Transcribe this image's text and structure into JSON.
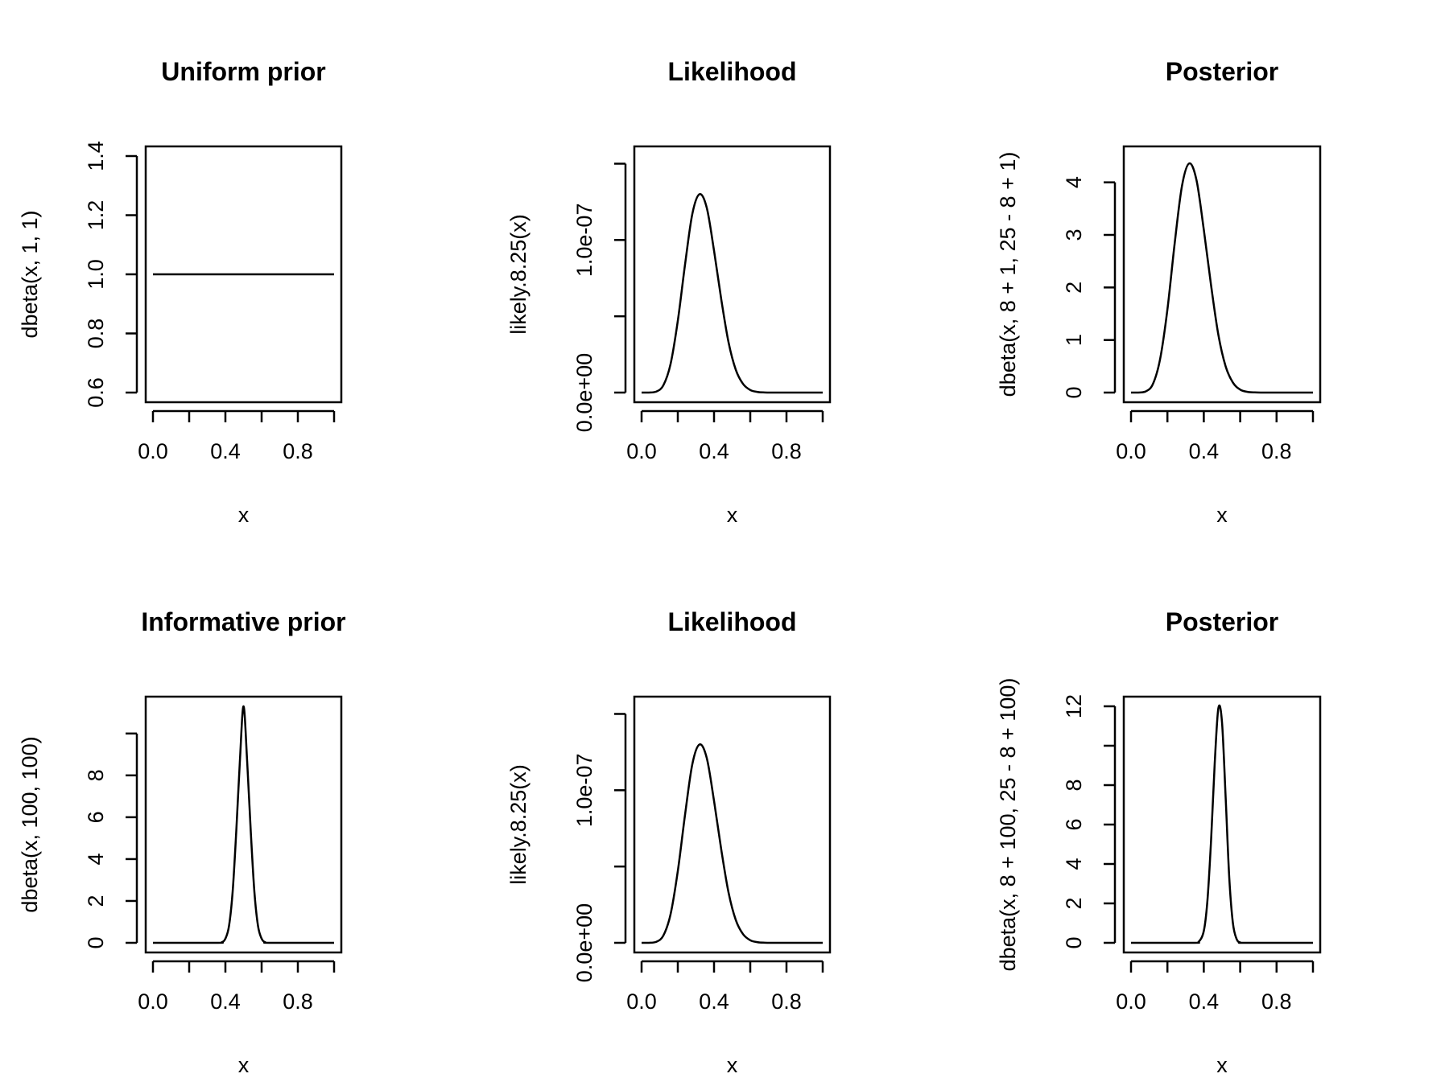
{
  "chart_data": [
    {
      "type": "line",
      "title": "Uniform prior",
      "xlabel": "x",
      "ylabel": "dbeta(x, 1, 1)",
      "xlim": [
        0,
        1
      ],
      "ylim": [
        0.6,
        1.4
      ],
      "x_ticks": [
        0.0,
        0.2,
        0.4,
        0.6,
        0.8,
        1.0
      ],
      "x_tick_labels": [
        "0.0",
        "",
        "0.4",
        "",
        "0.8",
        ""
      ],
      "y_ticks": [
        0.6,
        0.8,
        1.0,
        1.2,
        1.4
      ],
      "y_tick_labels": [
        "0.6",
        "0.8",
        "1.0",
        "1.2",
        "1.4"
      ],
      "series": [
        {
          "x": [
            0.0,
            0.1,
            0.2,
            0.3,
            0.4,
            0.5,
            0.6,
            0.7,
            0.8,
            0.9,
            1.0
          ],
          "y": [
            1,
            1,
            1,
            1,
            1,
            1,
            1,
            1,
            1,
            1,
            1
          ]
        }
      ],
      "grid": false
    },
    {
      "type": "line",
      "title": "Likelihood",
      "xlabel": "x",
      "ylabel": "likely.8.25(x)",
      "xlim": [
        0,
        1
      ],
      "ylim": [
        0,
        1.55e-07
      ],
      "x_ticks": [
        0.0,
        0.2,
        0.4,
        0.6,
        0.8,
        1.0
      ],
      "x_tick_labels": [
        "0.0",
        "",
        "0.4",
        "",
        "0.8",
        ""
      ],
      "y_ticks": [
        0,
        5e-08,
        1e-07,
        1.5e-07
      ],
      "y_tick_labels": [
        "0.0e+00",
        "",
        "1.0e-07",
        ""
      ],
      "series": [
        {
          "x": [
            0.0,
            0.04,
            0.08,
            0.12,
            0.16,
            0.2,
            0.24,
            0.28,
            0.32,
            0.36,
            0.4,
            0.44,
            0.48,
            0.52,
            0.56,
            0.6,
            0.64,
            0.68,
            0.72,
            0.8,
            0.9,
            1.0
          ],
          "y": [
            0,
            1e-11,
            6e-10,
            4.7e-09,
            1.87e-08,
            4.7e-08,
            8.4e-08,
            1.17e-07,
            1.3e-07,
            1.21e-07,
            9.3e-08,
            6.1e-08,
            3.3e-08,
            1.5e-08,
            5.7e-09,
            1.7e-09,
            4e-10,
            8e-11,
            1e-11,
            0,
            0,
            0
          ]
        }
      ],
      "grid": false
    },
    {
      "type": "line",
      "title": "Posterior",
      "xlabel": "x",
      "ylabel": "dbeta(x, 8 + 1, 25 - 8 + 1)",
      "xlim": [
        0,
        1
      ],
      "ylim": [
        0,
        4.5
      ],
      "x_ticks": [
        0.0,
        0.2,
        0.4,
        0.6,
        0.8,
        1.0
      ],
      "x_tick_labels": [
        "0.0",
        "",
        "0.4",
        "",
        "0.8",
        ""
      ],
      "y_ticks": [
        0,
        1,
        2,
        3,
        4
      ],
      "y_tick_labels": [
        "0",
        "1",
        "2",
        "3",
        "4"
      ],
      "series": [
        {
          "x": [
            0.0,
            0.04,
            0.08,
            0.12,
            0.16,
            0.2,
            0.24,
            0.28,
            0.32,
            0.36,
            0.4,
            0.44,
            0.48,
            0.52,
            0.56,
            0.6,
            0.64,
            0.68,
            0.72,
            0.8,
            0.9,
            1.0
          ],
          "y": [
            0,
            0.0003,
            0.02,
            0.16,
            0.64,
            1.58,
            2.84,
            3.93,
            4.36,
            4.04,
            3.1,
            2.04,
            1.1,
            0.5,
            0.19,
            0.057,
            0.014,
            0.003,
            0.0004,
            0,
            0,
            0
          ]
        }
      ],
      "grid": false
    },
    {
      "type": "line",
      "title": "Informative prior",
      "xlabel": "x",
      "ylabel": "dbeta(x, 100, 100)",
      "xlim": [
        0,
        1
      ],
      "ylim": [
        0,
        11.3
      ],
      "x_ticks": [
        0.0,
        0.2,
        0.4,
        0.6,
        0.8,
        1.0
      ],
      "x_tick_labels": [
        "0.0",
        "",
        "0.4",
        "",
        "0.8",
        ""
      ],
      "y_ticks": [
        0,
        2,
        4,
        6,
        8,
        10
      ],
      "y_tick_labels": [
        "0",
        "2",
        "4",
        "6",
        "8",
        ""
      ],
      "series": [
        {
          "x": [
            0.0,
            0.35,
            0.38,
            0.4,
            0.42,
            0.44,
            0.46,
            0.48,
            0.5,
            0.52,
            0.54,
            0.56,
            0.58,
            0.6,
            0.62,
            0.65,
            1.0
          ],
          "y": [
            0,
            0,
            0.03,
            0.2,
            0.81,
            2.44,
            5.33,
            8.69,
            11.3,
            8.69,
            5.33,
            2.44,
            0.81,
            0.2,
            0.03,
            0,
            0
          ]
        }
      ],
      "grid": false
    },
    {
      "type": "line",
      "title": "Likelihood",
      "xlabel": "x",
      "ylabel": "likely.8.25(x)",
      "xlim": [
        0,
        1
      ],
      "ylim": [
        0,
        1.55e-07
      ],
      "x_ticks": [
        0.0,
        0.2,
        0.4,
        0.6,
        0.8,
        1.0
      ],
      "x_tick_labels": [
        "0.0",
        "",
        "0.4",
        "",
        "0.8",
        ""
      ],
      "y_ticks": [
        0,
        5e-08,
        1e-07,
        1.5e-07
      ],
      "y_tick_labels": [
        "0.0e+00",
        "",
        "1.0e-07",
        ""
      ],
      "series": [
        {
          "x": [
            0.0,
            0.04,
            0.08,
            0.12,
            0.16,
            0.2,
            0.24,
            0.28,
            0.32,
            0.36,
            0.4,
            0.44,
            0.48,
            0.52,
            0.56,
            0.6,
            0.64,
            0.68,
            0.72,
            0.8,
            0.9,
            1.0
          ],
          "y": [
            0,
            1e-11,
            6e-10,
            4.7e-09,
            1.87e-08,
            4.7e-08,
            8.4e-08,
            1.17e-07,
            1.3e-07,
            1.21e-07,
            9.3e-08,
            6.1e-08,
            3.3e-08,
            1.5e-08,
            5.7e-09,
            1.7e-09,
            4e-10,
            8e-11,
            1e-11,
            0,
            0,
            0
          ]
        }
      ],
      "grid": false
    },
    {
      "type": "line",
      "title": "Posterior",
      "xlabel": "x",
      "ylabel": "dbeta(x, 8 + 100, 25 - 8 + 100)",
      "xlim": [
        0,
        1
      ],
      "ylim": [
        0,
        12
      ],
      "x_ticks": [
        0.0,
        0.2,
        0.4,
        0.6,
        0.8,
        1.0
      ],
      "x_tick_labels": [
        "0.0",
        "",
        "0.4",
        "",
        "0.8",
        ""
      ],
      "y_ticks": [
        0,
        2,
        4,
        6,
        8,
        10,
        12
      ],
      "y_tick_labels": [
        "0",
        "2",
        "4",
        "6",
        "8",
        "",
        "12"
      ],
      "series": [
        {
          "x": [
            0.0,
            0.34,
            0.37,
            0.4,
            0.42,
            0.44,
            0.46,
            0.48,
            0.5,
            0.52,
            0.54,
            0.56,
            0.58,
            0.6,
            0.63,
            1.0
          ],
          "y": [
            0,
            0,
            0.03,
            0.6,
            2.15,
            5.2,
            9.1,
            11.9,
            11.2,
            7.4,
            3.3,
            1.0,
            0.2,
            0.02,
            0,
            0
          ]
        }
      ],
      "grid": false
    }
  ]
}
